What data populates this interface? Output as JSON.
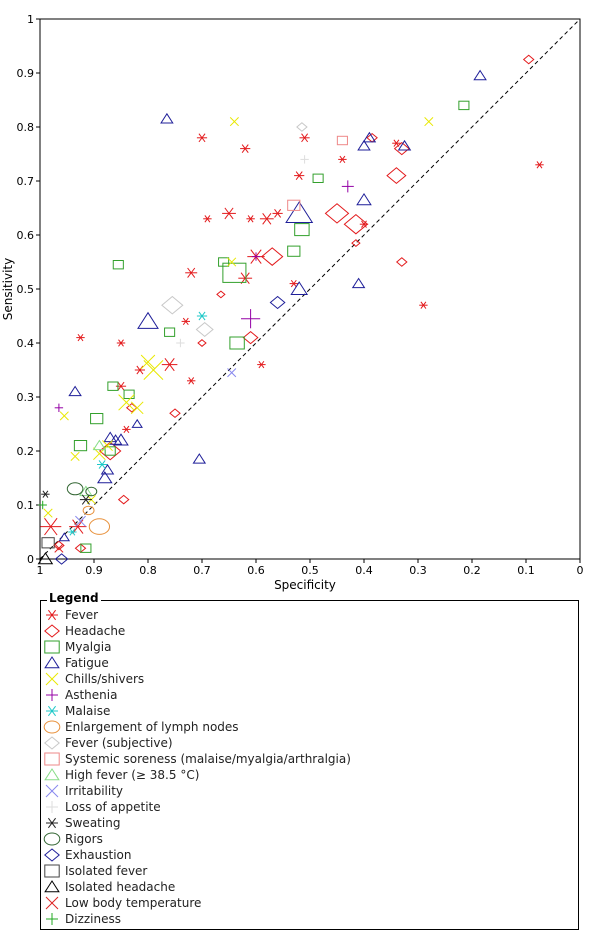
{
  "chart_data": {
    "type": "scatter",
    "title": "",
    "xlabel": "Specificity",
    "ylabel": "Sensitivity",
    "xlim": [
      1,
      0
    ],
    "ylim": [
      0,
      1
    ],
    "x_ticks": [
      "1",
      "0.9",
      "0.8",
      "0.7",
      "0.6",
      "0.5",
      "0.4",
      "0.3",
      "0.2",
      "0.1",
      "0"
    ],
    "y_ticks": [
      "0",
      "0.1",
      "0.2",
      "0.3",
      "0.4",
      "0.5",
      "0.6",
      "0.7",
      "0.8",
      "0.9",
      "1"
    ],
    "diagonal": "dashed",
    "legend_title": "Legend",
    "series": [
      {
        "name": "Fever",
        "marker": "star",
        "color": "#e31a1c",
        "points": [
          [
            0.98,
            0.06,
            10
          ],
          [
            0.93,
            0.06,
            8
          ],
          [
            0.925,
            0.41,
            3
          ],
          [
            0.85,
            0.4,
            3
          ],
          [
            0.84,
            0.24,
            3
          ],
          [
            0.85,
            0.32,
            4
          ],
          [
            0.815,
            0.35,
            4
          ],
          [
            0.76,
            0.36,
            7
          ],
          [
            0.72,
            0.33,
            3
          ],
          [
            0.73,
            0.44,
            3
          ],
          [
            0.72,
            0.53,
            5
          ],
          [
            0.7,
            0.78,
            4
          ],
          [
            0.69,
            0.63,
            3
          ],
          [
            0.65,
            0.64,
            6
          ],
          [
            0.62,
            0.52,
            6
          ],
          [
            0.62,
            0.76,
            4
          ],
          [
            0.61,
            0.63,
            3
          ],
          [
            0.6,
            0.56,
            8
          ],
          [
            0.59,
            0.36,
            3
          ],
          [
            0.58,
            0.63,
            6
          ],
          [
            0.56,
            0.64,
            4
          ],
          [
            0.53,
            0.51,
            3
          ],
          [
            0.52,
            0.71,
            4
          ],
          [
            0.51,
            0.78,
            4
          ],
          [
            0.44,
            0.74,
            3
          ],
          [
            0.4,
            0.62,
            3
          ],
          [
            0.34,
            0.77,
            3
          ],
          [
            0.29,
            0.47,
            3
          ],
          [
            0.075,
            0.73,
            3
          ]
        ]
      },
      {
        "name": "Headache",
        "marker": "diamond",
        "color": "#e31a1c",
        "points": [
          [
            0.965,
            0.025,
            3
          ],
          [
            0.925,
            0.02,
            3
          ],
          [
            0.87,
            0.2,
            8
          ],
          [
            0.845,
            0.11,
            3
          ],
          [
            0.83,
            0.28,
            3
          ],
          [
            0.75,
            0.27,
            3
          ],
          [
            0.7,
            0.4,
            2
          ],
          [
            0.665,
            0.49,
            2
          ],
          [
            0.61,
            0.41,
            5
          ],
          [
            0.57,
            0.56,
            8
          ],
          [
            0.45,
            0.64,
            9
          ],
          [
            0.415,
            0.62,
            9
          ],
          [
            0.415,
            0.585,
            2
          ],
          [
            0.385,
            0.78,
            3
          ],
          [
            0.34,
            0.71,
            7
          ],
          [
            0.33,
            0.55,
            3
          ],
          [
            0.33,
            0.76,
            5
          ],
          [
            0.095,
            0.925,
            3
          ]
        ]
      },
      {
        "name": "Myalgia",
        "marker": "square",
        "color": "#33a02c",
        "points": [
          [
            0.925,
            0.21,
            4
          ],
          [
            0.915,
            0.02,
            3
          ],
          [
            0.895,
            0.26,
            4
          ],
          [
            0.87,
            0.2,
            3
          ],
          [
            0.865,
            0.32,
            3
          ],
          [
            0.855,
            0.545,
            3
          ],
          [
            0.835,
            0.305,
            3
          ],
          [
            0.76,
            0.42,
            3
          ],
          [
            0.66,
            0.55,
            3
          ],
          [
            0.64,
            0.53,
            9
          ],
          [
            0.635,
            0.4,
            5
          ],
          [
            0.53,
            0.57,
            4
          ],
          [
            0.515,
            0.61,
            5
          ],
          [
            0.485,
            0.705,
            3
          ],
          [
            0.215,
            0.84,
            3
          ]
        ]
      },
      {
        "name": "Fatigue",
        "marker": "triangle",
        "color": "#1f1f99",
        "points": [
          [
            0.955,
            0.04,
            3
          ],
          [
            0.935,
            0.31,
            4
          ],
          [
            0.88,
            0.15,
            5
          ],
          [
            0.875,
            0.165,
            4
          ],
          [
            0.87,
            0.225,
            4
          ],
          [
            0.86,
            0.22,
            4
          ],
          [
            0.85,
            0.22,
            5
          ],
          [
            0.82,
            0.25,
            3
          ],
          [
            0.8,
            0.44,
            8
          ],
          [
            0.765,
            0.815,
            4
          ],
          [
            0.705,
            0.185,
            4
          ],
          [
            0.52,
            0.5,
            6
          ],
          [
            0.52,
            0.64,
            11
          ],
          [
            0.41,
            0.51,
            4
          ],
          [
            0.4,
            0.665,
            5
          ],
          [
            0.4,
            0.765,
            4
          ],
          [
            0.39,
            0.78,
            4
          ],
          [
            0.325,
            0.765,
            4
          ],
          [
            0.185,
            0.895,
            4
          ]
        ]
      },
      {
        "name": "Chills/shivers",
        "marker": "x",
        "color": "#e8e800",
        "points": [
          [
            0.985,
            0.085,
            3
          ],
          [
            0.955,
            0.265,
            3
          ],
          [
            0.935,
            0.19,
            3
          ],
          [
            0.905,
            0.11,
            3
          ],
          [
            0.89,
            0.195,
            5
          ],
          [
            0.875,
            0.21,
            4
          ],
          [
            0.84,
            0.29,
            7
          ],
          [
            0.82,
            0.28,
            5
          ],
          [
            0.8,
            0.365,
            6
          ],
          [
            0.79,
            0.35,
            9
          ],
          [
            0.645,
            0.55,
            3
          ],
          [
            0.64,
            0.81,
            3
          ],
          [
            0.28,
            0.81,
            3
          ]
        ]
      },
      {
        "name": "Asthenia",
        "marker": "plus",
        "color": "#9400a6",
        "points": [
          [
            0.965,
            0.28,
            3
          ],
          [
            0.61,
            0.445,
            9
          ],
          [
            0.6,
            0.56,
            3
          ],
          [
            0.43,
            0.69,
            5
          ]
        ]
      },
      {
        "name": "Malaise",
        "marker": "asterisk",
        "color": "#1ec8c8",
        "points": [
          [
            0.94,
            0.05,
            3
          ],
          [
            0.885,
            0.175,
            4
          ],
          [
            0.7,
            0.45,
            4
          ]
        ]
      },
      {
        "name": "Enlargement of lymph nodes",
        "marker": "circle",
        "color": "#e8913c",
        "points": [
          [
            0.91,
            0.09,
            3
          ],
          [
            0.89,
            0.06,
            7
          ]
        ]
      },
      {
        "name": "Fever (subjective)",
        "marker": "diamond",
        "color": "#c8c8c8",
        "points": [
          [
            0.755,
            0.47,
            8
          ],
          [
            0.695,
            0.425,
            6
          ],
          [
            0.515,
            0.8,
            3
          ]
        ]
      },
      {
        "name": "Systemic soreness (malaise/myalgia/arthralgia)",
        "marker": "square",
        "color": "#ee8888",
        "points": [
          [
            0.53,
            0.655,
            4
          ],
          [
            0.44,
            0.775,
            3
          ]
        ]
      },
      {
        "name": "High fever (≥ 38.5 °C)",
        "marker": "triangle",
        "color": "#88dd88",
        "points": [
          [
            0.915,
            0.125,
            4
          ],
          [
            0.89,
            0.21,
            4
          ]
        ]
      },
      {
        "name": "Irritability",
        "marker": "x",
        "color": "#8888ee",
        "points": [
          [
            0.925,
            0.07,
            4
          ],
          [
            0.645,
            0.345,
            3
          ]
        ]
      },
      {
        "name": "Loss of appetite",
        "marker": "plus",
        "color": "#dddddd",
        "points": [
          [
            0.74,
            0.4,
            3
          ],
          [
            0.51,
            0.74,
            3
          ]
        ]
      },
      {
        "name": "Sweating",
        "marker": "asterisk",
        "color": "#222222",
        "points": [
          [
            0.99,
            0.12,
            3
          ],
          [
            0.915,
            0.11,
            5
          ]
        ]
      },
      {
        "name": "Rigors",
        "marker": "circle",
        "color": "#336633",
        "points": [
          [
            0.935,
            0.13,
            5
          ],
          [
            0.905,
            0.125,
            3
          ]
        ]
      },
      {
        "name": "Exhaustion",
        "marker": "diamond",
        "color": "#1f1f99",
        "points": [
          [
            0.96,
            0.0,
            4
          ],
          [
            0.56,
            0.475,
            5
          ]
        ]
      },
      {
        "name": "Isolated fever",
        "marker": "square",
        "color": "#444444",
        "points": [
          [
            0.985,
            0.03,
            4
          ]
        ]
      },
      {
        "name": "Isolated headache",
        "marker": "triangle",
        "color": "#000000",
        "points": [
          [
            0.99,
            0.0,
            5
          ]
        ]
      },
      {
        "name": "Low body temperature",
        "marker": "x",
        "color": "#dd2222",
        "points": [
          [
            0.965,
            0.02,
            3
          ]
        ]
      },
      {
        "name": "Dizziness",
        "marker": "plus",
        "color": "#22aa22",
        "points": [
          [
            0.995,
            0.1,
            3
          ]
        ]
      }
    ]
  }
}
